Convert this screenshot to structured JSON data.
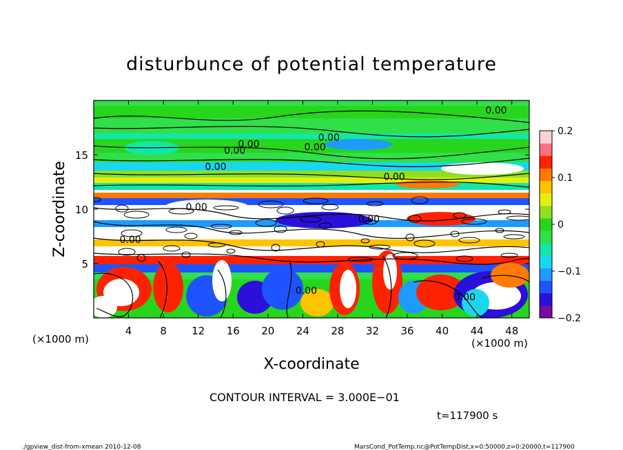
{
  "chart_data": {
    "type": "heatmap",
    "title": "disturbunce of potential temperature",
    "xlabel": "X-coordinate",
    "ylabel": "Z-coordinate",
    "x_unit_left": "(×1000 m)",
    "x_unit_right": "(×1000 m)",
    "xlim": [
      0,
      50
    ],
    "ylim": [
      0,
      20
    ],
    "x_ticks": [
      4,
      8,
      12,
      16,
      20,
      24,
      28,
      32,
      36,
      40,
      44,
      48
    ],
    "y_ticks": [
      5,
      10,
      15
    ],
    "colorbar": {
      "min": -0.2,
      "max": 0.2,
      "ticks": [
        {
          "value": 0.2,
          "label": "0.2"
        },
        {
          "value": 0.1,
          "label": "0.1"
        },
        {
          "value": 0,
          "label": "0"
        },
        {
          "value": -0.1,
          "label": "−0.1"
        },
        {
          "value": -0.2,
          "label": "−0.2"
        }
      ],
      "colors": [
        "#7a0aa0",
        "#2a10d8",
        "#1e54ff",
        "#1f9aff",
        "#18d8f0",
        "#12e6a8",
        "#2fe04a",
        "#27d61c",
        "#8ee020",
        "#e6ee10",
        "#ffc400",
        "#ff7a00",
        "#ff2200",
        "#ff6f80",
        "#ffd0d6"
      ]
    },
    "contour_labels": [
      {
        "text": "0.00",
        "x": 46.2,
        "z": 18.8
      },
      {
        "text": "0.00",
        "x": 27.0,
        "z": 16.3
      },
      {
        "text": "0.00",
        "x": 17.8,
        "z": 15.7
      },
      {
        "text": "0.00",
        "x": 25.4,
        "z": 15.4
      },
      {
        "text": "0.00",
        "x": 16.2,
        "z": 15.1
      },
      {
        "text": "0.00",
        "x": 14.0,
        "z": 13.6
      },
      {
        "text": "0.00",
        "x": 34.5,
        "z": 12.7
      },
      {
        "text": "0.00",
        "x": 11.8,
        "z": 9.9
      },
      {
        "text": "0.00",
        "x": 31.6,
        "z": 8.8
      },
      {
        "text": "0.00",
        "x": 4.2,
        "z": 6.9
      },
      {
        "text": "0.00",
        "x": 24.4,
        "z": 2.2
      },
      {
        "text": "0.00",
        "x": 42.6,
        "z": 1.6
      }
    ],
    "grid": false
  },
  "contour_interval_text": "CONTOUR INTERVAL = 3.000E−01",
  "time_text": "t=117900 s",
  "footer_left": "./gpview_dist-from-xmean  2010-12-08",
  "footer_right": "MarsCond_PotTemp.nc@PotTempDist,x=0:50000,z=0:20000,t=117900"
}
